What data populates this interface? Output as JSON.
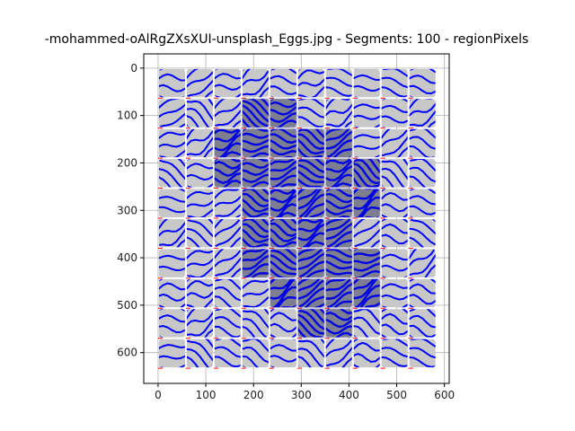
{
  "chart_data": {
    "type": "scatter",
    "title": "-mohammed-oAlRgZXsXUI-unsplash_Eggs.jpg - Segments: 100 - regionPixels",
    "xlabel": "",
    "ylabel": "",
    "xlim": [
      -30,
      610
    ],
    "ylim": [
      665,
      -30
    ],
    "y_inverted": true,
    "grid": true,
    "x_ticks": [
      0,
      100,
      200,
      300,
      400,
      500,
      600
    ],
    "y_ticks": [
      0,
      100,
      200,
      300,
      400,
      500,
      600
    ],
    "grid_layout": {
      "cols": 10,
      "rows": 10,
      "x_extent": [
        0,
        583
      ],
      "y_extent": [
        0,
        633
      ]
    },
    "segment_boundary_color": "#ff0000",
    "stroke_color": "#0000ff",
    "background_gray": "#c8c8c8",
    "dark_regions": [
      {
        "cx": 220,
        "cy": 190,
        "rx": 110,
        "ry": 120
      },
      {
        "cx": 270,
        "cy": 360,
        "rx": 120,
        "ry": 130
      },
      {
        "cx": 380,
        "cy": 260,
        "rx": 95,
        "ry": 110
      },
      {
        "cx": 360,
        "cy": 440,
        "rx": 90,
        "ry": 110
      }
    ]
  }
}
